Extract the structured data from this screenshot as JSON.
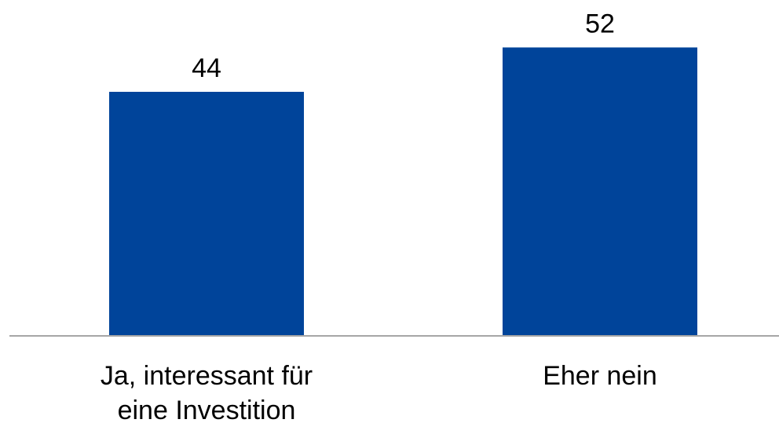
{
  "chart_data": {
    "type": "bar",
    "categories": [
      [
        "Ja, interessant für",
        "eine Investition"
      ],
      [
        "Eher nein"
      ]
    ],
    "values": [
      44,
      52
    ],
    "data_labels": [
      "44",
      "52"
    ],
    "title": "",
    "xlabel": "",
    "ylabel": "",
    "ylim": [
      0,
      60
    ],
    "grid": false,
    "legend": "none",
    "bar_color": "#00449A",
    "axis_color": "#A6A6A6"
  }
}
